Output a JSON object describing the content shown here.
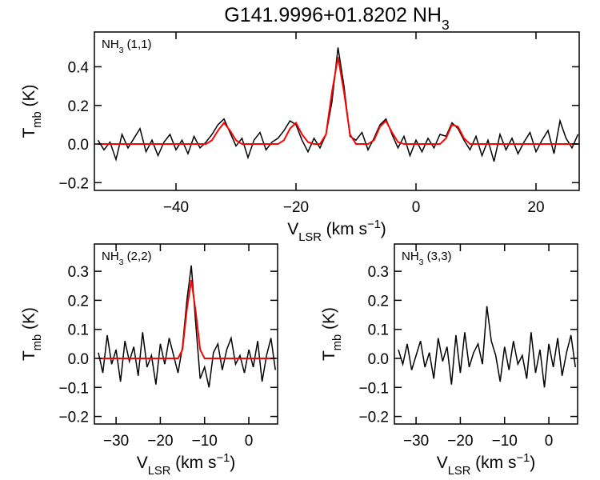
{
  "chart_data": [
    {
      "type": "line",
      "title": [
        {
          "text": "G141.9996+01.8202 NH"
        },
        {
          "text": "3",
          "shift": "sub"
        }
      ],
      "annotation": [
        {
          "text": "NH"
        },
        {
          "text": "3",
          "shift": "sub"
        },
        {
          "text": " (1,1)"
        }
      ],
      "x_label": [
        {
          "text": "V"
        },
        {
          "text": "LSR",
          "shift": "sub"
        },
        {
          "text": " (km s"
        },
        {
          "text": "−1",
          "shift": "super"
        },
        {
          "text": ")"
        }
      ],
      "y_label": [
        {
          "text": "T"
        },
        {
          "text": "mb",
          "shift": "sub"
        },
        {
          "text": " (K)"
        }
      ],
      "xlim": [
        -53.6,
        27.2
      ],
      "ylim": [
        -0.24,
        0.58
      ],
      "xticks": [
        {
          "value": -40,
          "label": "−40"
        },
        {
          "value": -20,
          "label": "−20"
        },
        0,
        20
      ],
      "yticks": [
        {
          "value": -0.2,
          "label": "−0.2"
        },
        {
          "value": 0,
          "label": "0.0"
        },
        {
          "value": 0.2,
          "label": "0.2"
        },
        {
          "value": 0.4,
          "label": "0.4"
        }
      ],
      "x": [
        -53,
        -52,
        -51,
        -50,
        -49,
        -48,
        -47,
        -46,
        -45,
        -44,
        -43,
        -42,
        -41,
        -40,
        -39,
        -38,
        -37,
        -36,
        -35,
        -34,
        -33,
        -32,
        -31,
        -30,
        -29,
        -28,
        -27,
        -26,
        -25,
        -24,
        -23,
        -22,
        -21,
        -20,
        -19,
        -18,
        -17,
        -16,
        -15,
        -14,
        -13,
        -12,
        -11,
        -10,
        -9,
        -8,
        -7,
        -6,
        -5,
        -4,
        -3,
        -2,
        -1,
        0,
        1,
        2,
        3,
        4,
        5,
        6,
        7,
        8,
        9,
        10,
        11,
        12,
        13,
        14,
        15,
        16,
        17,
        18,
        19,
        20,
        21,
        22,
        23,
        24,
        25,
        26,
        27
      ],
      "series": [
        {
          "color": "#000000",
          "values": [
            0.02,
            -0.03,
            0.01,
            -0.08,
            0.05,
            -0.02,
            0.03,
            0.08,
            -0.04,
            0.02,
            -0.06,
            0.01,
            0.05,
            -0.03,
            0.02,
            -0.05,
            0.04,
            -0.02,
            0.01,
            0.05,
            0.1,
            0.13,
            0.06,
            -0.01,
            0.03,
            -0.07,
            0.02,
            0.06,
            -0.03,
            0.01,
            0.03,
            0.07,
            0.12,
            0.1,
            0.02,
            -0.04,
            0.03,
            -0.02,
            0.05,
            0.22,
            0.5,
            0.3,
            0.04,
            0.02,
            0.06,
            -0.03,
            0.03,
            0.1,
            0.13,
            0.05,
            -0.02,
            0.04,
            -0.06,
            0.02,
            -0.04,
            0.03,
            -0.02,
            0.05,
            0.04,
            0.11,
            0.08,
            0.02,
            -0.03,
            0.04,
            -0.06,
            0.02,
            -0.09,
            0.05,
            -0.03,
            0.03,
            -0.05,
            0.01,
            0.06,
            -0.04,
            0.02,
            0.07,
            -0.05,
            0.12,
            0.03,
            -0.02,
            0.05
          ]
        },
        {
          "color": "#ff0000",
          "values": [
            0,
            0,
            0,
            0,
            0,
            0,
            0,
            0,
            0,
            0,
            0,
            0,
            0,
            0,
            0,
            0,
            0,
            0,
            0,
            0.02,
            0.07,
            0.11,
            0.07,
            0.02,
            0,
            0,
            0,
            0,
            0,
            0,
            0,
            0.02,
            0.08,
            0.11,
            0.05,
            0.01,
            0,
            0,
            0.05,
            0.27,
            0.45,
            0.27,
            0.05,
            0,
            0,
            0,
            0.02,
            0.09,
            0.12,
            0.06,
            0.01,
            0,
            0,
            0,
            0,
            0,
            0,
            0,
            0.03,
            0.1,
            0.09,
            0.03,
            0,
            0,
            0,
            0,
            0,
            0,
            0,
            0,
            0,
            0,
            0,
            0,
            0,
            0,
            0,
            0,
            0,
            0,
            0
          ]
        }
      ]
    },
    {
      "type": "line",
      "annotation": [
        {
          "text": "NH"
        },
        {
          "text": "3",
          "shift": "sub"
        },
        {
          "text": " (2,2)"
        }
      ],
      "x_label": [
        {
          "text": "V"
        },
        {
          "text": "LSR",
          "shift": "sub"
        },
        {
          "text": " (km s"
        },
        {
          "text": "−1",
          "shift": "super"
        },
        {
          "text": ")"
        }
      ],
      "y_label": [
        {
          "text": "T"
        },
        {
          "text": "mb",
          "shift": "sub"
        },
        {
          "text": " (K)"
        }
      ],
      "xlim": [
        -34.9,
        6.5
      ],
      "ylim": [
        -0.226,
        0.394
      ],
      "xticks": [
        {
          "value": -30,
          "label": "−30"
        },
        {
          "value": -20,
          "label": "−20"
        },
        {
          "value": -10,
          "label": "−10"
        },
        0
      ],
      "yticks": [
        {
          "value": -0.2,
          "label": "−0.2"
        },
        {
          "value": -0.1,
          "label": "−0.1"
        },
        {
          "value": 0,
          "label": "0.0"
        },
        0.1,
        0.2,
        0.3
      ],
      "x": [
        -34,
        -33,
        -32,
        -31,
        -30,
        -29,
        -28,
        -27,
        -26,
        -25,
        -24,
        -23,
        -22,
        -21,
        -20,
        -19,
        -18,
        -17,
        -16,
        -15,
        -14,
        -13,
        -12,
        -11,
        -10,
        -9,
        -8,
        -7,
        -6,
        -5,
        -4,
        -3,
        -2,
        -1,
        0,
        1,
        2,
        3,
        4,
        5,
        6
      ],
      "series": [
        {
          "color": "#000000",
          "values": [
            0.02,
            -0.05,
            0.08,
            -0.02,
            0.03,
            -0.08,
            0.06,
            -0.01,
            0.04,
            -0.06,
            0.09,
            -0.03,
            0.01,
            -0.09,
            0.05,
            -0.02,
            0.07,
            0.01,
            -0.05,
            0.04,
            0.2,
            0.32,
            0.12,
            -0.07,
            -0.03,
            -0.1,
            0.02,
            0.05,
            -0.04,
            0.03,
            0.07,
            -0.02,
            0.01,
            -0.05,
            0.03,
            -0.03,
            0.06,
            -0.08,
            0.01,
            0.07,
            -0.04
          ]
        },
        {
          "color": "#ff0000",
          "values": [
            0,
            0,
            0,
            0,
            0,
            0,
            0,
            0,
            0,
            0,
            0,
            0,
            0,
            0,
            0,
            0,
            0,
            0,
            0,
            0.03,
            0.17,
            0.27,
            0.16,
            0.03,
            0,
            0,
            0,
            0,
            0,
            0,
            0,
            0,
            0,
            0,
            0,
            0,
            0,
            0,
            0,
            0,
            0
          ]
        }
      ]
    },
    {
      "type": "line",
      "annotation": [
        {
          "text": "NH"
        },
        {
          "text": "3",
          "shift": "sub"
        },
        {
          "text": " (3,3)"
        }
      ],
      "x_label": [
        {
          "text": "V"
        },
        {
          "text": "LSR",
          "shift": "sub"
        },
        {
          "text": " (km s"
        },
        {
          "text": "−1",
          "shift": "super"
        },
        {
          "text": ")"
        }
      ],
      "y_label": [
        {
          "text": "T"
        },
        {
          "text": "mb",
          "shift": "sub"
        },
        {
          "text": " (K)"
        }
      ],
      "xlim": [
        -34.9,
        6.5
      ],
      "ylim": [
        -0.226,
        0.394
      ],
      "xticks": [
        {
          "value": -30,
          "label": "−30"
        },
        {
          "value": -20,
          "label": "−20"
        },
        {
          "value": -10,
          "label": "−10"
        },
        0
      ],
      "yticks": [
        {
          "value": -0.2,
          "label": "−0.2"
        },
        {
          "value": -0.1,
          "label": "−0.1"
        },
        {
          "value": 0,
          "label": "0.0"
        },
        0.1,
        0.2,
        0.3
      ],
      "x": [
        -34,
        -33,
        -32,
        -31,
        -30,
        -29,
        -28,
        -27,
        -26,
        -25,
        -24,
        -23,
        -22,
        -21,
        -20,
        -19,
        -18,
        -17,
        -16,
        -15,
        -14,
        -13,
        -12,
        -11,
        -10,
        -9,
        -8,
        -7,
        -6,
        -5,
        -4,
        -3,
        -2,
        -1,
        0,
        1,
        2,
        3,
        4,
        5,
        6
      ],
      "series": [
        {
          "color": "#000000",
          "values": [
            0.03,
            -0.02,
            0.05,
            -0.04,
            0.01,
            0.06,
            -0.03,
            0.02,
            -0.07,
            0.07,
            -0.01,
            0.04,
            -0.09,
            0.08,
            -0.05,
            0.09,
            -0.03,
            0.02,
            0.05,
            -0.02,
            0.18,
            0.06,
            0.01,
            -0.08,
            0.04,
            -0.04,
            0.06,
            -0.02,
            0.01,
            -0.07,
            0.09,
            -0.05,
            0.03,
            -0.1,
            0.05,
            -0.03,
            0.07,
            -0.06,
            0.02,
            0.08,
            -0.03
          ]
        }
      ]
    }
  ]
}
